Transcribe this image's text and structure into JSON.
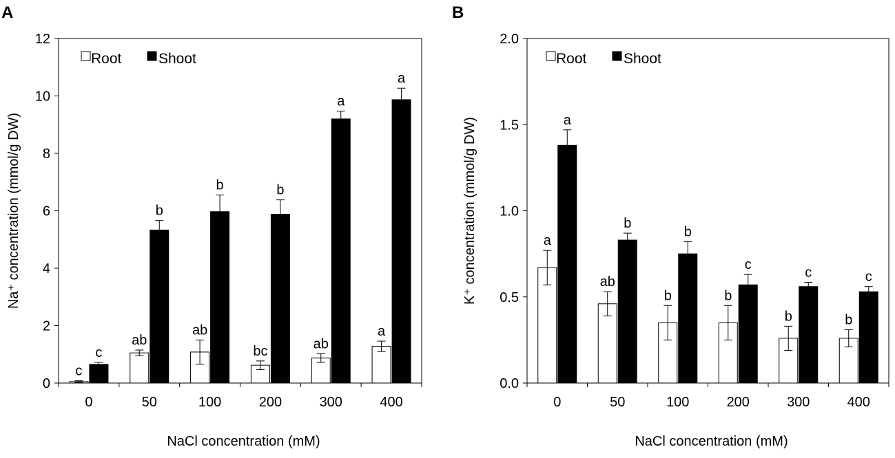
{
  "colors": {
    "root": "#ffffff",
    "shoot": "#000000",
    "axis": "#000000"
  },
  "chart_data": [
    {
      "type": "bar",
      "panel_label": "A",
      "title": "",
      "xlabel": "NaCl concentration  (mM)",
      "ylabel": "Na⁺ concentration (mmol/g DW)",
      "categories": [
        "0",
        "50",
        "100",
        "200",
        "300",
        "400"
      ],
      "ylim": [
        0,
        12
      ],
      "yticks": [
        "0",
        "2",
        "4",
        "6",
        "8",
        "10",
        "12"
      ],
      "legend_position": "top-left",
      "grid": false,
      "series": [
        {
          "name": "Root",
          "values": [
            0.05,
            1.05,
            1.08,
            0.62,
            0.87,
            1.28
          ],
          "errors": [
            0.03,
            0.1,
            0.42,
            0.15,
            0.15,
            0.18
          ],
          "labels": [
            "c",
            "ab",
            "ab",
            "bc",
            "ab",
            "a"
          ]
        },
        {
          "name": "Shoot",
          "values": [
            0.65,
            5.33,
            5.97,
            5.88,
            9.2,
            9.87
          ],
          "errors": [
            0.07,
            0.33,
            0.58,
            0.5,
            0.27,
            0.4
          ],
          "labels": [
            "c",
            "b",
            "b",
            "b",
            "a",
            "a"
          ]
        }
      ]
    },
    {
      "type": "bar",
      "panel_label": "B",
      "title": "",
      "xlabel": "NaCl concentration  (mM)",
      "ylabel": "K⁺ concentration (mmol/g DW)",
      "categories": [
        "0",
        "50",
        "100",
        "200",
        "300",
        "400"
      ],
      "ylim": [
        0,
        2
      ],
      "yticks": [
        "0.0",
        "0.5",
        "1.0",
        "1.5",
        "2.0"
      ],
      "legend_position": "top-left",
      "grid": false,
      "series": [
        {
          "name": "Root",
          "values": [
            0.67,
            0.46,
            0.35,
            0.35,
            0.26,
            0.26
          ],
          "errors": [
            0.1,
            0.07,
            0.1,
            0.1,
            0.07,
            0.05
          ],
          "labels": [
            "a",
            "ab",
            "b",
            "b",
            "b",
            "b"
          ]
        },
        {
          "name": "Shoot",
          "values": [
            1.38,
            0.83,
            0.75,
            0.57,
            0.56,
            0.53
          ],
          "errors": [
            0.09,
            0.04,
            0.07,
            0.06,
            0.025,
            0.03
          ],
          "labels": [
            "a",
            "b",
            "b",
            "c",
            "c",
            "c"
          ]
        }
      ]
    }
  ]
}
